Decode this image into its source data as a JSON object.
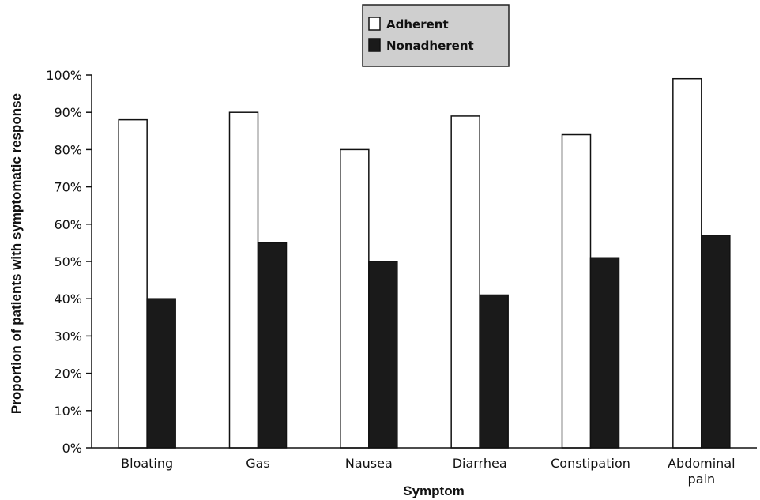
{
  "chart_data": {
    "type": "bar",
    "categories": [
      [
        "Bloating"
      ],
      [
        "Gas"
      ],
      [
        "Nausea"
      ],
      [
        "Diarrhea"
      ],
      [
        "Constipation"
      ],
      [
        "Abdominal",
        "pain"
      ]
    ],
    "series": [
      {
        "name": "Adherent",
        "color": "#ffffff",
        "values": [
          88,
          90,
          80,
          89,
          84,
          99
        ]
      },
      {
        "name": "Nonadherent",
        "color": "#1a1a1a",
        "values": [
          40,
          55,
          50,
          41,
          51,
          57
        ]
      }
    ],
    "xlabel": "Symptom",
    "ylabel": "Proportion of patients with symptomatic response",
    "ylim": [
      0,
      100
    ],
    "yticks": [
      0,
      10,
      20,
      30,
      40,
      50,
      60,
      70,
      80,
      90,
      100
    ],
    "ytick_format": "%",
    "legend_position": "top-center",
    "grid": false
  }
}
